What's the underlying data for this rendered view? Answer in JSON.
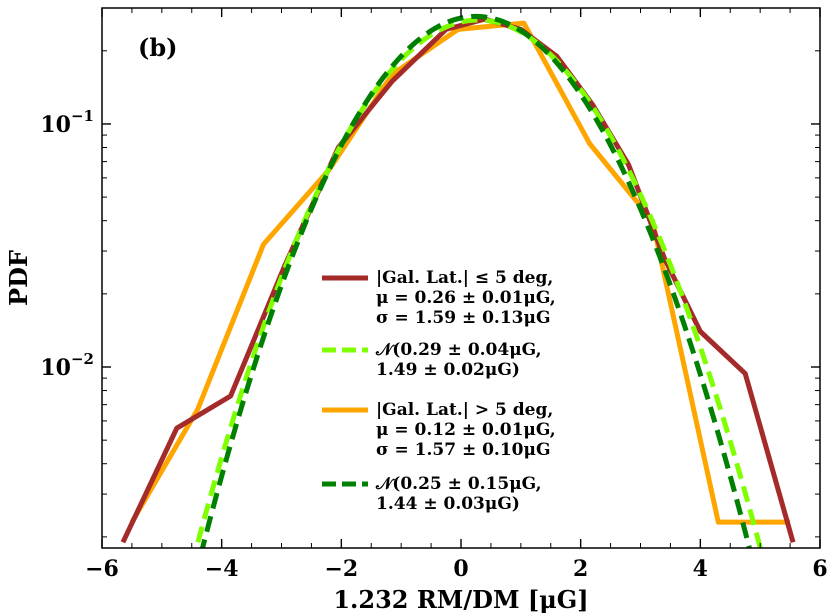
{
  "chart_data": {
    "type": "line",
    "panel_label": "(b)",
    "xlabel": "1.232 RM/DM [μG]",
    "ylabel": "PDF",
    "xlim": [
      -6,
      6
    ],
    "ylim": [
      0.0018,
      0.3
    ],
    "yscale": "log",
    "x_ticks": [
      -6,
      -4,
      -2,
      0,
      2,
      4,
      6
    ],
    "x_tick_labels": [
      "−6",
      "−4",
      "−2",
      "0",
      "2",
      "4",
      "6"
    ],
    "y_ticks": [
      0.01,
      0.1
    ],
    "y_tick_labels": [
      {
        "base": "10",
        "exp": "−2"
      },
      {
        "base": "10",
        "exp": "−1"
      }
    ],
    "grid": false,
    "legend_position": "center-right",
    "series": [
      {
        "color": "#a52a2a",
        "style": "solid",
        "legend_lines": [
          "|Gal. Lat.| ≤ 5 deg,",
          "μ = 0.26 ± 0.01μG,",
          "σ = 1.59 ± 0.13μG"
        ],
        "x": [
          -5.65,
          -4.75,
          -3.85,
          -2.95,
          -2.05,
          -1.15,
          -0.25,
          0.4,
          1.0,
          1.6,
          2.2,
          2.8,
          3.4,
          4.0,
          4.75,
          5.55
        ],
        "y": [
          0.0019,
          0.0056,
          0.0076,
          0.026,
          0.08,
          0.15,
          0.245,
          0.27,
          0.245,
          0.19,
          0.12,
          0.068,
          0.028,
          0.014,
          0.0094,
          0.0019
        ]
      },
      {
        "color": "#7fff00",
        "style": "dashed",
        "legend_lines": [
          "𝒩(0.29 ± 0.04μG,",
          "1.49 ± 0.02μG)"
        ],
        "mu": 0.29,
        "sigma": 1.49,
        "x_range": [
          -4.5,
          5.1
        ]
      },
      {
        "color": "#ffa500",
        "style": "solid",
        "legend_lines": [
          "|Gal. Lat.| > 5 deg,",
          "μ = 0.12 ± 0.01μG,",
          "σ = 1.57 ± 0.10μG"
        ],
        "x": [
          -5.5,
          -4.4,
          -3.3,
          -2.2,
          -1.15,
          -0.05,
          1.05,
          2.15,
          3.2,
          4.3,
          5.5
        ],
        "y": [
          0.0023,
          0.0067,
          0.032,
          0.065,
          0.16,
          0.245,
          0.26,
          0.083,
          0.04,
          0.0023,
          0.0023
        ]
      },
      {
        "color": "#008000",
        "style": "dashed",
        "legend_lines": [
          "𝒩(0.25 ± 0.15μG,",
          "1.44 ± 0.03μG)"
        ],
        "mu": 0.25,
        "sigma": 1.44,
        "x_range": [
          -4.35,
          4.85
        ]
      }
    ]
  }
}
